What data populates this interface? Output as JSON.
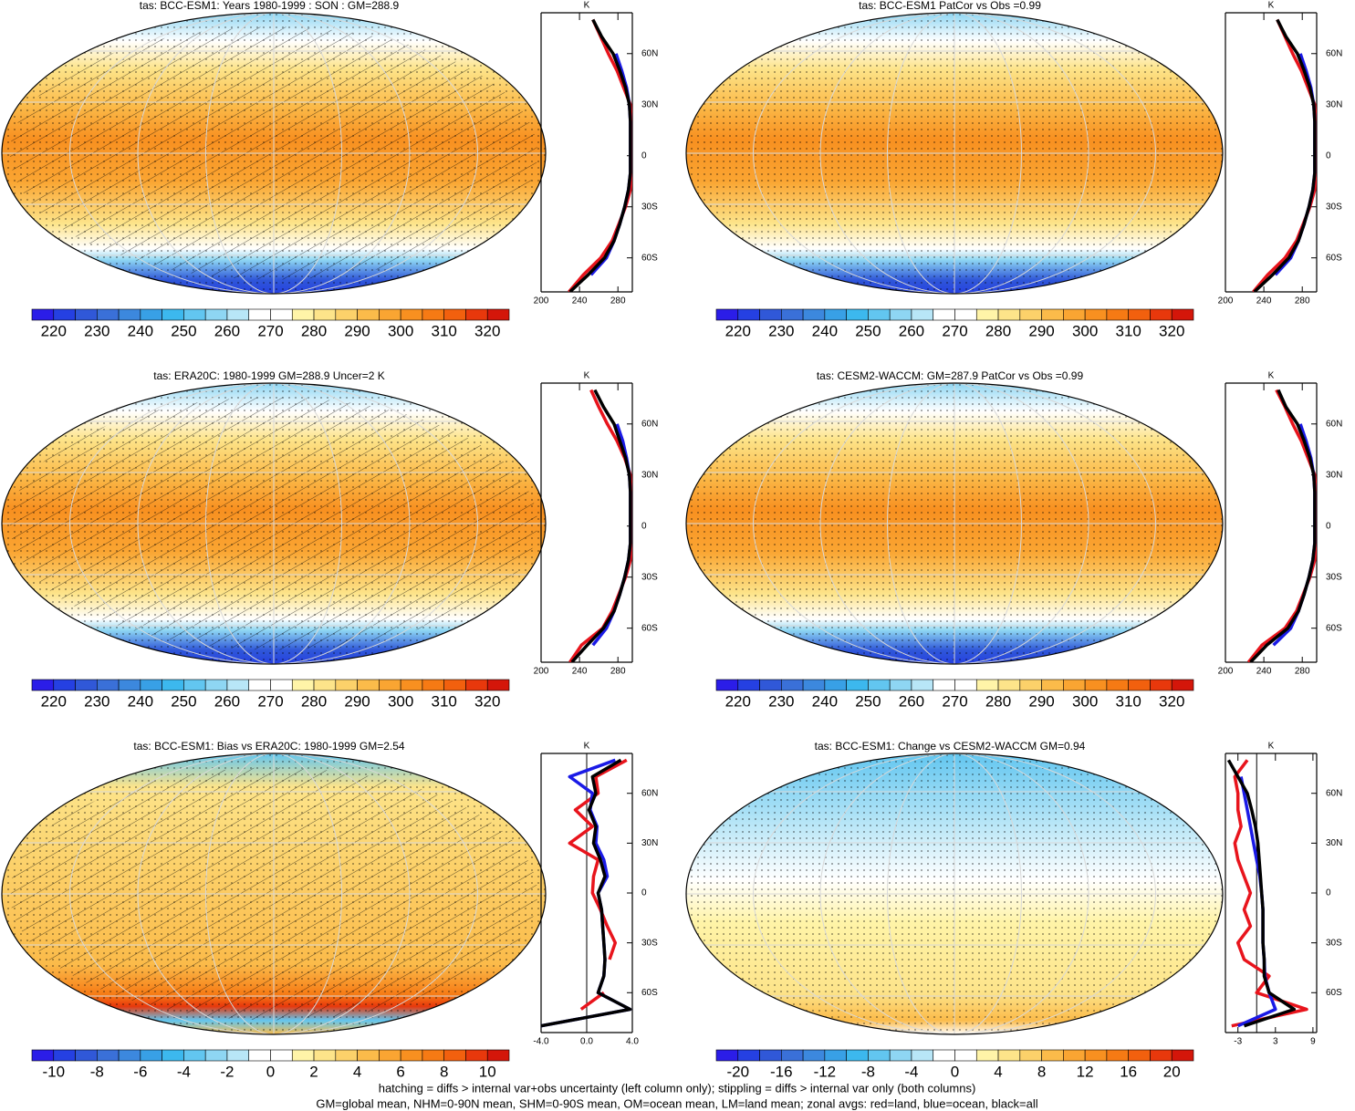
{
  "chart_data": [
    {
      "type": "map",
      "title": "tas: BCC-ESM1: Years 1980-1999 : SON : GM=288.9",
      "hatching": true,
      "colorbar": {
        "lim": [
          215,
          325
        ],
        "ticks": [
          220,
          230,
          240,
          250,
          260,
          270,
          280,
          290,
          300,
          310,
          320
        ],
        "colors": [
          "#2b1de8",
          "#2540e2",
          "#3058d8",
          "#3a70d8",
          "#3c88de",
          "#38a0e6",
          "#3cb8ee",
          "#62c6f0",
          "#8ed6f3",
          "#b8e6f7",
          "#ffffff",
          "#ffffff",
          "#fff4a8",
          "#fde48a",
          "#fcd16a",
          "#fbbb4a",
          "#faa532",
          "#f89020",
          "#f67a14",
          "#f2600e",
          "#e8380c",
          "#d4160a"
        ]
      },
      "zonal": {
        "type": "line",
        "xlabel": "K",
        "xlim": [
          200,
          295
        ],
        "xticks": [
          200,
          240,
          280
        ],
        "ylim": [
          -80,
          84
        ],
        "yticks": [
          {
            "value": 60,
            "label": "60N"
          },
          {
            "value": 30,
            "label": "30N"
          },
          0,
          {
            "value": -30,
            "label": "30S"
          },
          {
            "value": -60,
            "label": "60S"
          }
        ],
        "lat": [
          -80,
          -70,
          -60,
          -50,
          -40,
          -30,
          -20,
          -10,
          0,
          10,
          20,
          30,
          40,
          50,
          60,
          70,
          80
        ],
        "series": [
          {
            "color": "#e8141c",
            "values": [
              229,
              244,
              262,
              274,
              281,
              288,
              293,
              294,
              294,
              294,
              294,
              293,
              286,
              279,
              270,
              262,
              254
            ]
          },
          {
            "color": "#1a1ae6",
            "values": [
              null,
              252,
              268,
              276,
              282,
              287,
              291,
              293,
              293,
              293,
              293,
              292,
              289,
              284,
              278,
              null,
              null
            ]
          },
          {
            "color": "#000000",
            "values": [
              230,
              249,
              266,
              276,
              282,
              287,
              291,
              293,
              293,
              293,
              293,
              292,
              288,
              282,
              275,
              263,
              254
            ]
          }
        ]
      }
    },
    {
      "type": "map",
      "title": "tas: BCC-ESM1 PatCor vs Obs =0.99",
      "hatching": false,
      "colorbar": {
        "lim": [
          215,
          325
        ],
        "ticks": [
          220,
          230,
          240,
          250,
          260,
          270,
          280,
          290,
          300,
          310,
          320
        ],
        "colors": [
          "#2b1de8",
          "#2540e2",
          "#3058d8",
          "#3a70d8",
          "#3c88de",
          "#38a0e6",
          "#3cb8ee",
          "#62c6f0",
          "#8ed6f3",
          "#b8e6f7",
          "#ffffff",
          "#ffffff",
          "#fff4a8",
          "#fde48a",
          "#fcd16a",
          "#fbbb4a",
          "#faa532",
          "#f89020",
          "#f67a14",
          "#f2600e",
          "#e8380c",
          "#d4160a"
        ]
      },
      "zonal": {
        "type": "line",
        "xlabel": "K",
        "xlim": [
          200,
          295
        ],
        "xticks": [
          200,
          240,
          280
        ],
        "ylim": [
          -80,
          84
        ],
        "yticks": [
          {
            "value": 60,
            "label": "60N"
          },
          {
            "value": 30,
            "label": "30N"
          },
          0,
          {
            "value": -30,
            "label": "30S"
          },
          {
            "value": -60,
            "label": "60S"
          }
        ],
        "lat": [
          -80,
          -70,
          -60,
          -50,
          -40,
          -30,
          -20,
          -10,
          0,
          10,
          20,
          30,
          40,
          50,
          60,
          70,
          80
        ],
        "series": [
          {
            "color": "#e8141c",
            "values": [
              229,
              244,
              262,
              274,
              281,
              288,
              293,
              294,
              294,
              294,
              294,
              293,
              286,
              279,
              270,
              262,
              254
            ]
          },
          {
            "color": "#1a1ae6",
            "values": [
              null,
              252,
              268,
              276,
              282,
              287,
              291,
              293,
              293,
              293,
              293,
              292,
              289,
              284,
              278,
              null,
              null
            ]
          },
          {
            "color": "#000000",
            "values": [
              230,
              249,
              266,
              276,
              282,
              287,
              291,
              293,
              293,
              293,
              293,
              292,
              288,
              282,
              275,
              263,
              254
            ]
          }
        ]
      }
    },
    {
      "type": "map",
      "title": "tas: ERA20C: 1980-1999 GM=288.9 Uncer=2 K",
      "hatching": true,
      "colorbar": {
        "lim": [
          215,
          325
        ],
        "ticks": [
          220,
          230,
          240,
          250,
          260,
          270,
          280,
          290,
          300,
          310,
          320
        ],
        "colors": [
          "#2b1de8",
          "#2540e2",
          "#3058d8",
          "#3a70d8",
          "#3c88de",
          "#38a0e6",
          "#3cb8ee",
          "#62c6f0",
          "#8ed6f3",
          "#b8e6f7",
          "#ffffff",
          "#ffffff",
          "#fff4a8",
          "#fde48a",
          "#fcd16a",
          "#fbbb4a",
          "#faa532",
          "#f89020",
          "#f67a14",
          "#f2600e",
          "#e8380c",
          "#d4160a"
        ]
      },
      "zonal": {
        "type": "line",
        "xlabel": "K",
        "xlim": [
          200,
          295
        ],
        "xticks": [
          200,
          240,
          280
        ],
        "ylim": [
          -80,
          84
        ],
        "yticks": [
          {
            "value": 60,
            "label": "60N"
          },
          {
            "value": 30,
            "label": "30N"
          },
          0,
          {
            "value": -30,
            "label": "30S"
          },
          {
            "value": -60,
            "label": "60S"
          }
        ],
        "lat": [
          -80,
          -70,
          -60,
          -50,
          -40,
          -30,
          -20,
          -10,
          0,
          10,
          20,
          30,
          40,
          50,
          60,
          70,
          80
        ],
        "series": [
          {
            "color": "#e8141c",
            "values": [
              230,
              242,
              264,
              274,
              281,
              288,
              293,
              294,
              294,
              294,
              294,
              293,
              287,
              279,
              269,
              260,
              252
            ]
          },
          {
            "color": "#1a1ae6",
            "values": [
              null,
              254,
              268,
              276,
              282,
              287,
              291,
              293,
              293,
              293,
              293,
              292,
              289,
              285,
              279,
              null,
              null
            ]
          },
          {
            "color": "#000000",
            "values": [
              232,
              248,
              265,
              276,
              282,
              287,
              291,
              293,
              293,
              293,
              293,
              292,
              288,
              282,
              276,
              265,
              256
            ]
          }
        ]
      }
    },
    {
      "type": "map",
      "title": "tas: CESM2-WACCM: GM=287.9 PatCor vs Obs =0.99",
      "hatching": false,
      "colorbar": {
        "lim": [
          215,
          325
        ],
        "ticks": [
          220,
          230,
          240,
          250,
          260,
          270,
          280,
          290,
          300,
          310,
          320
        ],
        "colors": [
          "#2b1de8",
          "#2540e2",
          "#3058d8",
          "#3a70d8",
          "#3c88de",
          "#38a0e6",
          "#3cb8ee",
          "#62c6f0",
          "#8ed6f3",
          "#b8e6f7",
          "#ffffff",
          "#ffffff",
          "#fff4a8",
          "#fde48a",
          "#fcd16a",
          "#fbbb4a",
          "#faa532",
          "#f89020",
          "#f67a14",
          "#f2600e",
          "#e8380c",
          "#d4160a"
        ]
      },
      "zonal": {
        "type": "line",
        "xlabel": "K",
        "xlim": [
          200,
          295
        ],
        "xticks": [
          200,
          240,
          280
        ],
        "ylim": [
          -80,
          84
        ],
        "yticks": [
          {
            "value": 60,
            "label": "60N"
          },
          {
            "value": 30,
            "label": "30N"
          },
          0,
          {
            "value": -30,
            "label": "30S"
          },
          {
            "value": -60,
            "label": "60S"
          }
        ],
        "lat": [
          -80,
          -70,
          -60,
          -50,
          -40,
          -30,
          -20,
          -10,
          0,
          10,
          20,
          30,
          40,
          50,
          60,
          70,
          80
        ],
        "series": [
          {
            "color": "#e8141c",
            "values": [
              224,
              238,
              262,
              274,
              281,
              288,
              293,
              294,
              294,
              294,
              294,
              293,
              286,
              279,
              270,
              262,
              253
            ]
          },
          {
            "color": "#1a1ae6",
            "values": [
              null,
              250,
              268,
              276,
              282,
              287,
              291,
              293,
              293,
              293,
              293,
              292,
              289,
              284,
              278,
              null,
              null
            ]
          },
          {
            "color": "#000000",
            "values": [
              226,
              243,
              265,
              276,
              282,
              287,
              291,
              293,
              293,
              293,
              293,
              292,
              288,
              282,
              275,
              263,
              255
            ]
          }
        ]
      }
    },
    {
      "type": "map",
      "title": "tas: BCC-ESM1: Bias vs ERA20C: 1980-1999  GM=2.54",
      "hatching": true,
      "colorbar": {
        "lim": [
          -11,
          11
        ],
        "ticks": [
          -10,
          -8,
          -6,
          -4,
          -2,
          0,
          2,
          4,
          6,
          8,
          10
        ],
        "colors": [
          "#2b1de8",
          "#2540e2",
          "#3058d8",
          "#3a70d8",
          "#3c88de",
          "#38a0e6",
          "#3cb8ee",
          "#62c6f0",
          "#8ed6f3",
          "#b8e6f7",
          "#ffffff",
          "#ffffff",
          "#fff4a8",
          "#fde48a",
          "#fcd16a",
          "#fbbb4a",
          "#faa532",
          "#f89020",
          "#f67a14",
          "#f2600e",
          "#e8380c",
          "#d4160a"
        ]
      },
      "zonal": {
        "type": "line",
        "xlabel": "K",
        "xlim": [
          -4,
          4
        ],
        "reference_line": true,
        "xticks": [
          {
            "value": -4,
            "label": "-4.0"
          },
          {
            "value": 0,
            "label": "0.0"
          },
          {
            "value": 4,
            "label": "4.0"
          }
        ],
        "ylim": [
          -84,
          84
        ],
        "yticks": [
          {
            "value": 60,
            "label": "60N"
          },
          {
            "value": 30,
            "label": "30N"
          },
          0,
          {
            "value": -30,
            "label": "30S"
          },
          {
            "value": -60,
            "label": "60S"
          }
        ],
        "lat": [
          -80,
          -70,
          -60,
          -50,
          -40,
          -30,
          -20,
          -10,
          0,
          10,
          20,
          30,
          40,
          50,
          60,
          70,
          80
        ],
        "series": [
          {
            "color": "#e8141c",
            "values": [
              null,
              -0.5,
              1.5,
              null,
              2.0,
              2.5,
              1.8,
              1.2,
              0.5,
              0.6,
              1.0,
              -1.5,
              0.5,
              -1.0,
              1.0,
              0.8,
              3.5
            ]
          },
          {
            "color": "#1a1ae6",
            "values": [
              -4,
              3.8,
              1.0,
              1.5,
              1.6,
              1.5,
              1.4,
              1.3,
              1.0,
              1.8,
              1.5,
              0.8,
              0.9,
              0.3,
              0.5,
              -1.5,
              2.5
            ]
          },
          {
            "color": "#000000",
            "values": [
              -4,
              3.8,
              1.0,
              1.5,
              1.6,
              1.5,
              1.4,
              1.3,
              1.0,
              1.6,
              1.2,
              0.6,
              0.8,
              0.2,
              0.8,
              0.5,
              3.0
            ]
          }
        ]
      }
    },
    {
      "type": "map",
      "title": "tas: BCC-ESM1: Change vs CESM2-WACCM GM=0.94",
      "hatching": false,
      "colorbar": {
        "lim": [
          -22,
          22
        ],
        "ticks": [
          -20,
          -16,
          -12,
          -8,
          -4,
          0,
          4,
          8,
          12,
          16,
          20
        ],
        "colors": [
          "#2b1de8",
          "#2540e2",
          "#3058d8",
          "#3a70d8",
          "#3c88de",
          "#38a0e6",
          "#3cb8ee",
          "#62c6f0",
          "#8ed6f3",
          "#b8e6f7",
          "#ffffff",
          "#ffffff",
          "#fff4a8",
          "#fde48a",
          "#fcd16a",
          "#fbbb4a",
          "#faa532",
          "#f89020",
          "#f67a14",
          "#f2600e",
          "#e8380c",
          "#d4160a"
        ]
      },
      "zonal": {
        "type": "line",
        "xlabel": "K",
        "xlim": [
          -5,
          9.6
        ],
        "reference_line": true,
        "xticks": [
          -3,
          3,
          9
        ],
        "ylim": [
          -84,
          84
        ],
        "yticks": [
          {
            "value": 60,
            "label": "60N"
          },
          {
            "value": 30,
            "label": "30N"
          },
          0,
          {
            "value": -30,
            "label": "30S"
          },
          {
            "value": -60,
            "label": "60S"
          }
        ],
        "lat": [
          -80,
          -70,
          -60,
          -50,
          -40,
          -30,
          -20,
          -10,
          0,
          10,
          20,
          30,
          40,
          50,
          60,
          70,
          80
        ],
        "series": [
          {
            "color": "#e8141c",
            "values": [
              -4,
              8,
              0,
              2,
              -2,
              -3,
              -1,
              -2,
              -1,
              -2,
              -3,
              -3.5,
              -2.5,
              -3,
              -3,
              -3.5,
              -1.5
            ]
          },
          {
            "color": "#1a1ae6",
            "values": [
              -3,
              3,
              2,
              1.3,
              1.2,
              1.0,
              1.0,
              1.0,
              0.8,
              0.5,
              0.0,
              -0.5,
              -1.0,
              -1.5,
              -2,
              -2.5,
              null
            ]
          },
          {
            "color": "#000000",
            "values": [
              -2,
              6,
              2,
              1.2,
              1.2,
              1.0,
              1.0,
              1.0,
              0.8,
              0.6,
              0.4,
              0.2,
              -0.2,
              -0.8,
              -1.5,
              -3,
              -4.5
            ]
          }
        ]
      }
    }
  ],
  "notes": [
    "hatching = diffs > internal var+obs uncertainty (left column only); stippling = diffs > internal var only (both columns)",
    "GM=global mean, NHM=0-90N mean, SHM=0-90S mean, OM=ocean mean, LM=land mean; zonal avgs: red=land, blue=ocean, black=all"
  ]
}
